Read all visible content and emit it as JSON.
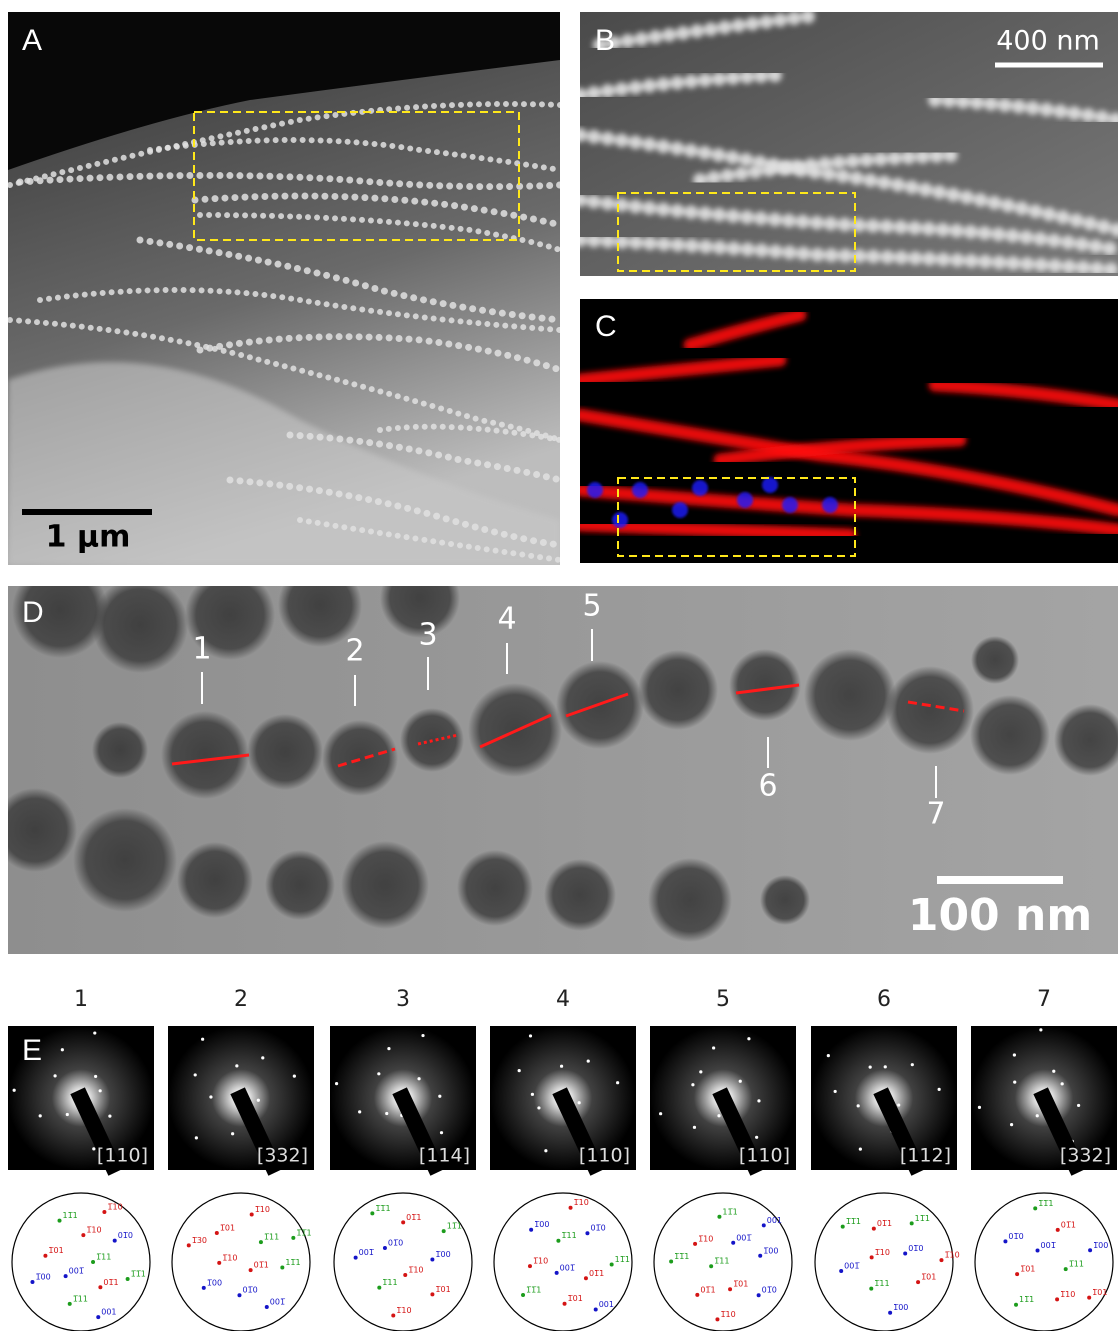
{
  "panels": {
    "A": {
      "label": "A",
      "scale_bar": "1 µm"
    },
    "B": {
      "label": "B",
      "scale_bar": "400 nm"
    },
    "C": {
      "label": "C"
    },
    "D": {
      "label": "D",
      "scale_bar": "100 nm",
      "particles": [
        "1",
        "2",
        "3",
        "4",
        "5",
        "6",
        "7"
      ]
    },
    "E": {
      "label": "E",
      "columns": [
        {
          "number": "1",
          "zone_axis": "[110]",
          "spots": [
            {
              "label": "1̅11",
              "color": "green"
            },
            {
              "label": "001̅",
              "color": "blue"
            },
            {
              "label": "1̅10",
              "color": "red"
            },
            {
              "label": "01̅1",
              "color": "red"
            },
            {
              "label": "1̅01",
              "color": "red"
            },
            {
              "label": "01̅0",
              "color": "blue"
            },
            {
              "label": "1̅11",
              "color": "green"
            },
            {
              "label": "11̅1",
              "color": "green"
            },
            {
              "label": "1̅1̅1",
              "color": "green"
            },
            {
              "label": "1̅00",
              "color": "blue"
            },
            {
              "label": "1̅10",
              "color": "red"
            },
            {
              "label": "001",
              "color": "blue"
            }
          ]
        },
        {
          "number": "2",
          "zone_axis": "[332]",
          "spots": [
            {
              "label": "01̅1",
              "color": "red"
            },
            {
              "label": "1̅10",
              "color": "red"
            },
            {
              "label": "1̅11",
              "color": "green"
            },
            {
              "label": "01̅0",
              "color": "blue"
            },
            {
              "label": "1̅01",
              "color": "red"
            },
            {
              "label": "11̅1",
              "color": "green"
            },
            {
              "label": "1̅00",
              "color": "blue"
            },
            {
              "label": "1̅10",
              "color": "red"
            },
            {
              "label": "001̅",
              "color": "blue"
            },
            {
              "label": "1̅30",
              "color": "red"
            },
            {
              "label": "1̅1̅1",
              "color": "green"
            }
          ]
        },
        {
          "number": "3",
          "zone_axis": "[114]",
          "spots": [
            {
              "label": "1̅10",
              "color": "red"
            },
            {
              "label": "01̅0",
              "color": "blue"
            },
            {
              "label": "1̅00",
              "color": "blue"
            },
            {
              "label": "1̅11",
              "color": "green"
            },
            {
              "label": "01̅1",
              "color": "red"
            },
            {
              "label": "1̅01",
              "color": "red"
            },
            {
              "label": "001̅",
              "color": "blue"
            },
            {
              "label": "11̅1",
              "color": "green"
            },
            {
              "label": "1̅10",
              "color": "red"
            },
            {
              "label": "1̅1̅1",
              "color": "green"
            }
          ]
        },
        {
          "number": "4",
          "zone_axis": "[110]",
          "spots": [
            {
              "label": "001̅",
              "color": "blue"
            },
            {
              "label": "1̅11",
              "color": "green"
            },
            {
              "label": "01̅1",
              "color": "red"
            },
            {
              "label": "1̅10",
              "color": "red"
            },
            {
              "label": "01̅0",
              "color": "blue"
            },
            {
              "label": "1̅01",
              "color": "red"
            },
            {
              "label": "1̅00",
              "color": "blue"
            },
            {
              "label": "11̅1",
              "color": "green"
            },
            {
              "label": "1̅1̅1",
              "color": "green"
            },
            {
              "label": "1̅10",
              "color": "red"
            },
            {
              "label": "001",
              "color": "blue"
            }
          ]
        },
        {
          "number": "5",
          "zone_axis": "[110]",
          "spots": [
            {
              "label": "1̅11",
              "color": "green"
            },
            {
              "label": "001̅",
              "color": "blue"
            },
            {
              "label": "1̅01",
              "color": "red"
            },
            {
              "label": "1̅10",
              "color": "red"
            },
            {
              "label": "1̅00",
              "color": "blue"
            },
            {
              "label": "01̅1",
              "color": "red"
            },
            {
              "label": "11̅1",
              "color": "green"
            },
            {
              "label": "01̅0",
              "color": "blue"
            },
            {
              "label": "1̅1̅1",
              "color": "green"
            },
            {
              "label": "001",
              "color": "blue"
            },
            {
              "label": "1̅10",
              "color": "red"
            }
          ]
        },
        {
          "number": "6",
          "zone_axis": "[112]",
          "spots": [
            {
              "label": "1̅10",
              "color": "red"
            },
            {
              "label": "01̅0",
              "color": "blue"
            },
            {
              "label": "1̅11",
              "color": "green"
            },
            {
              "label": "01̅1",
              "color": "red"
            },
            {
              "label": "1̅01",
              "color": "red"
            },
            {
              "label": "001̅",
              "color": "blue"
            },
            {
              "label": "11̅1",
              "color": "green"
            },
            {
              "label": "1̅00",
              "color": "blue"
            },
            {
              "label": "1̅1̅1",
              "color": "green"
            },
            {
              "label": "1̅10",
              "color": "red"
            }
          ]
        },
        {
          "number": "7",
          "zone_axis": "[332]",
          "spots": [
            {
              "label": "001̅",
              "color": "blue"
            },
            {
              "label": "1̅11",
              "color": "green"
            },
            {
              "label": "1̅01",
              "color": "red"
            },
            {
              "label": "01̅1",
              "color": "red"
            },
            {
              "label": "1̅10",
              "color": "red"
            },
            {
              "label": "01̅0",
              "color": "blue"
            },
            {
              "label": "1̅00",
              "color": "blue"
            },
            {
              "label": "11̅1",
              "color": "green"
            },
            {
              "label": "1̅1̅1",
              "color": "green"
            },
            {
              "label": "1̅01",
              "color": "red"
            }
          ]
        }
      ]
    }
  }
}
